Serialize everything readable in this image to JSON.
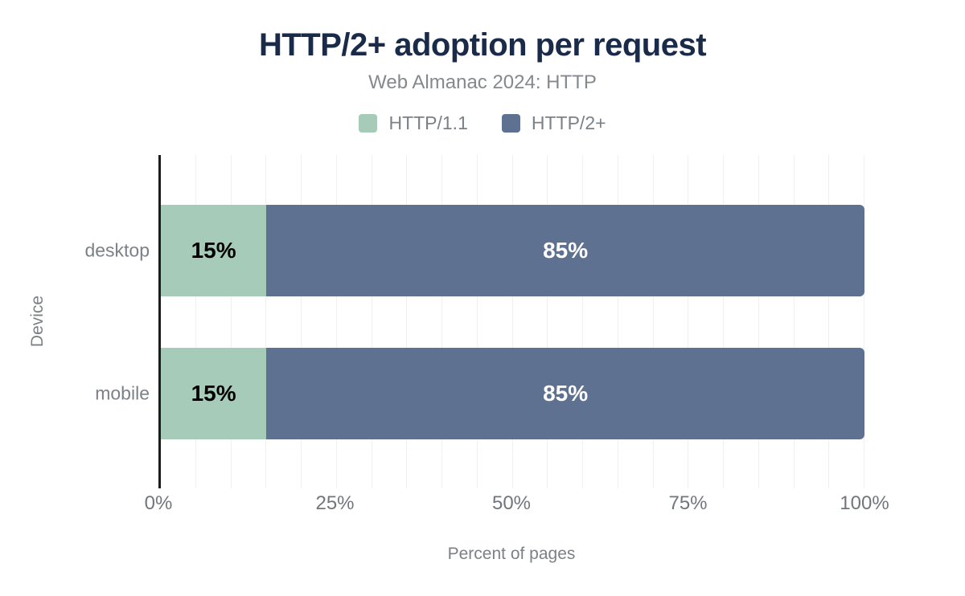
{
  "chart_data": {
    "type": "bar",
    "orientation": "horizontal",
    "stacked": true,
    "title": "HTTP/2+ adoption per request",
    "subtitle": "Web Almanac 2024: HTTP",
    "xlabel": "Percent of pages",
    "ylabel": "Device",
    "categories": [
      "desktop",
      "mobile"
    ],
    "series": [
      {
        "name": "HTTP/1.1",
        "color": "#a6cbb8",
        "label_color": "#000000",
        "values": [
          15,
          15
        ],
        "labels": [
          "15%",
          "15%"
        ]
      },
      {
        "name": "HTTP/2+",
        "color": "#5f7190",
        "label_color": "#ffffff",
        "values": [
          85,
          85
        ],
        "labels": [
          "85%",
          "85%"
        ]
      }
    ],
    "xlim": [
      0,
      100
    ],
    "xticks": [
      {
        "pos": 0,
        "label": "0%"
      },
      {
        "pos": 25,
        "label": "25%"
      },
      {
        "pos": 50,
        "label": "50%"
      },
      {
        "pos": 75,
        "label": "75%"
      },
      {
        "pos": 100,
        "label": "100%"
      }
    ],
    "grid": {
      "step": 5,
      "color": "#f0f0f0"
    },
    "legend_position": "top"
  },
  "colors": {
    "title": "#1a2b49",
    "subtitle": "#85898e",
    "muted_text": "#7b8187",
    "tick_text": "#71767d",
    "axis_line": "#1c1c1c",
    "background": "#ffffff"
  }
}
